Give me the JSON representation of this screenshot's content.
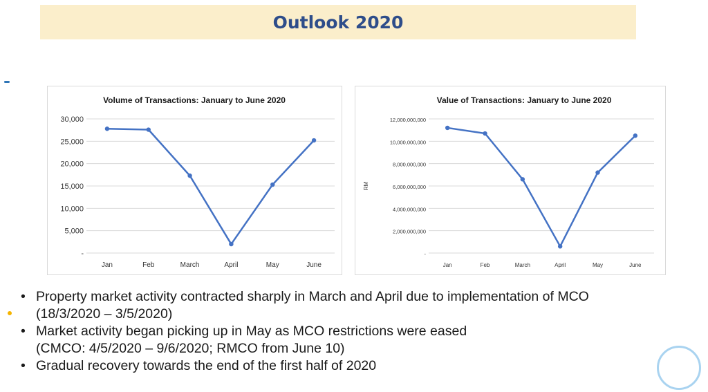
{
  "page": {
    "title": "Outlook 2020"
  },
  "chart_data": [
    {
      "type": "line",
      "title": "Volume of Transactions: January to June 2020",
      "categories": [
        "Jan",
        "Feb",
        "March",
        "April",
        "May",
        "June"
      ],
      "series": [
        {
          "values": [
            27800,
            27600,
            17300,
            2000,
            15300,
            25200
          ]
        }
      ],
      "ylim": [
        0,
        30000
      ],
      "ytick_values": [
        0,
        5000,
        10000,
        15000,
        20000,
        25000,
        30000
      ],
      "yticks": [
        "-",
        "5,000",
        "10,000",
        "15,000",
        "20,000",
        "25,000",
        "30,000"
      ],
      "xlabel": "",
      "ylabel": "",
      "grid": true,
      "color": "#4472c4"
    },
    {
      "type": "line",
      "title": "Value of Transactions: January to June 2020",
      "categories": [
        "Jan",
        "Feb",
        "March",
        "April",
        "May",
        "June"
      ],
      "series": [
        {
          "values": [
            11200000000,
            10700000000,
            6600000000,
            600000000,
            7200000000,
            10500000000
          ]
        }
      ],
      "ylim": [
        0,
        12000000000
      ],
      "ytick_values": [
        0,
        2000000000,
        4000000000,
        6000000000,
        8000000000,
        10000000000,
        12000000000
      ],
      "yticks": [
        "-",
        "2,000,000,000",
        "4,000,000,000",
        "6,000,000,000",
        "8,000,000,000",
        "10,000,000,000",
        "12,000,000,000"
      ],
      "xlabel": "",
      "ylabel": "RM",
      "grid": true,
      "color": "#4472c4"
    }
  ],
  "bullets": [
    {
      "line1": "Property market activity contracted sharply in March and April due to implementation of MCO",
      "line2": "(18/3/2020 – 3/5/2020)"
    },
    {
      "line1": "Market activity began picking up in May as MCO restrictions were eased",
      "line2": "(CMCO: 4/5/2020 – 9/6/2020; RMCO from June 10)"
    },
    {
      "line1": "Gradual recovery towards the end of the first half of 2020",
      "line2": ""
    }
  ]
}
